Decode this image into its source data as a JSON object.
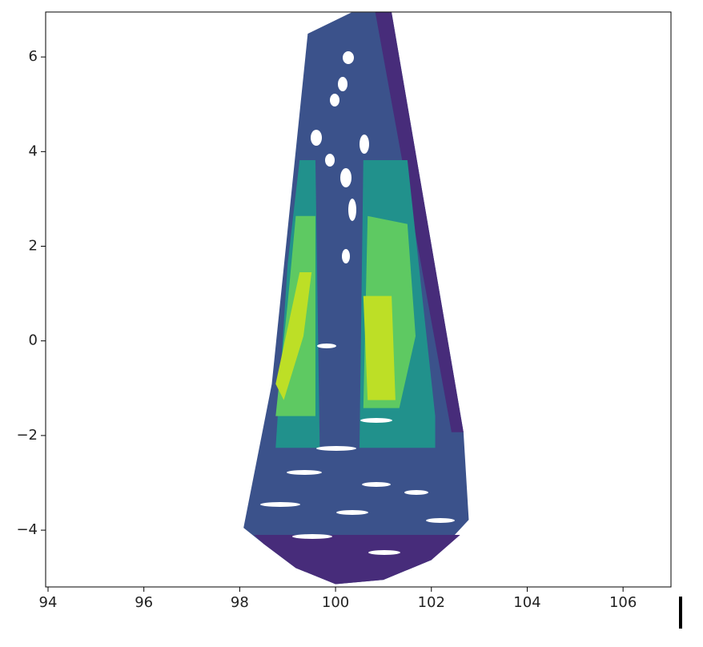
{
  "chart_data": {
    "type": "contourf",
    "xlim": [
      93.95,
      107
    ],
    "ylim": [
      -5.2,
      6.95
    ],
    "xticks": [
      94,
      96,
      98,
      100,
      102,
      104,
      106
    ],
    "yticks": [
      {
        "value": -4,
        "label": "−4"
      },
      {
        "value": -2,
        "label": "−2"
      },
      0,
      2,
      4,
      6
    ],
    "regions": [
      {
        "color": "#3b528b",
        "x": [
          99.42,
          100.33,
          101.17,
          102.67,
          102.78,
          102.0,
          101.0,
          100.0,
          99.17,
          98.5,
          98.08,
          98.67
        ],
        "y": [
          6.49,
          6.94,
          6.94,
          -1.93,
          -3.78,
          -4.63,
          -5.05,
          -5.14,
          -4.8,
          -4.29,
          -3.95,
          -0.91
        ]
      },
      {
        "color": "#472c7a",
        "x": [
          100.83,
          101.17,
          102.67,
          102.42
        ],
        "y": [
          6.94,
          6.94,
          -1.93,
          -1.93
        ]
      },
      {
        "color": "#472c7a",
        "x": [
          98.3,
          102.6,
          102.0,
          101.0,
          100.0,
          99.17,
          98.5
        ],
        "y": [
          -4.1,
          -4.1,
          -4.63,
          -5.05,
          -5.14,
          -4.8,
          -4.29
        ]
      },
      {
        "color": "#21918c",
        "x": [
          99.25,
          99.58,
          99.67,
          98.75,
          99.0
        ],
        "y": [
          3.82,
          3.82,
          -2.26,
          -2.26,
          1.62
        ]
      },
      {
        "color": "#21918c",
        "x": [
          100.58,
          101.5,
          102.08,
          102.08,
          100.5
        ],
        "y": [
          3.82,
          3.82,
          -1.59,
          -2.26,
          -2.26
        ]
      },
      {
        "color": "#5ec962",
        "x": [
          99.17,
          99.58,
          99.58,
          98.75,
          99.0
        ],
        "y": [
          2.64,
          2.64,
          -1.59,
          -1.59,
          0.78
        ]
      },
      {
        "color": "#5ec962",
        "x": [
          100.67,
          101.5,
          101.67,
          101.33,
          100.58
        ],
        "y": [
          2.64,
          2.47,
          0.1,
          -1.42,
          -1.42
        ]
      },
      {
        "color": "#bddf26",
        "x": [
          99.25,
          99.5,
          99.33,
          98.92,
          98.75
        ],
        "y": [
          1.45,
          1.45,
          0.1,
          -1.25,
          -0.91
        ]
      },
      {
        "color": "#bddf26",
        "x": [
          100.58,
          101.17,
          101.25,
          100.67
        ],
        "y": [
          0.95,
          0.95,
          -1.25,
          -1.25
        ]
      }
    ]
  }
}
